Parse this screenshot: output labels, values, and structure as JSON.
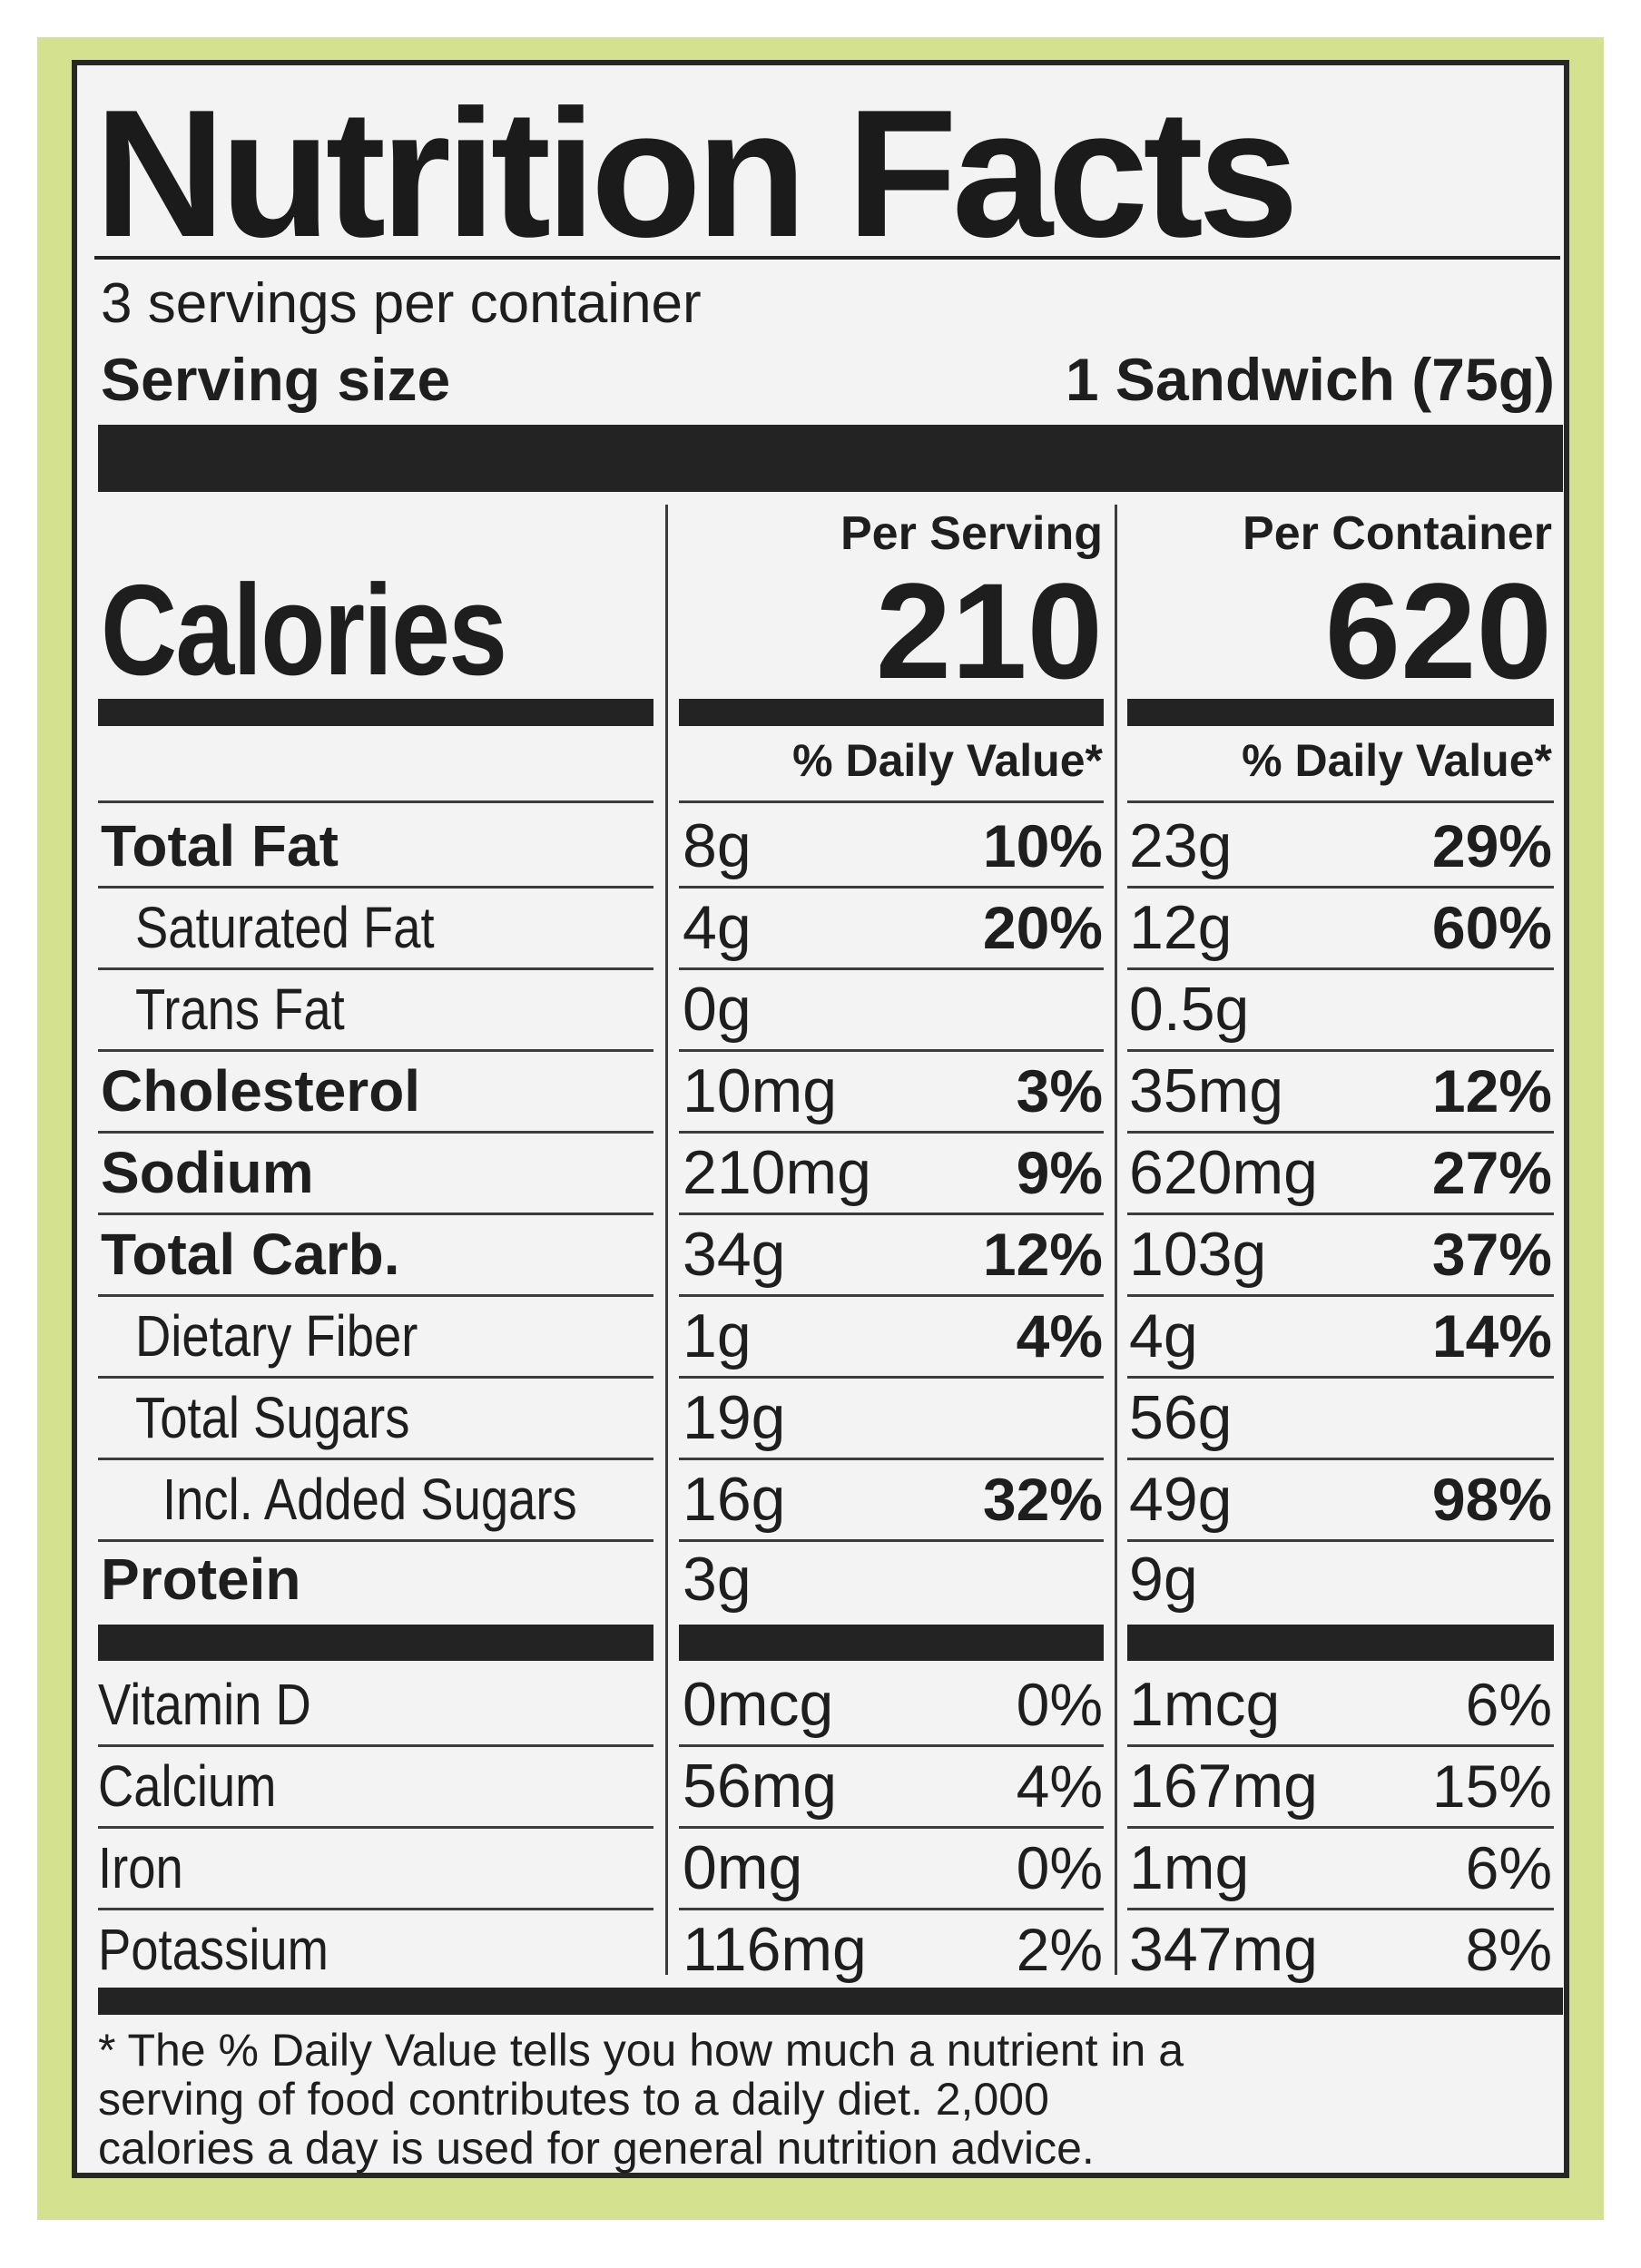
{
  "title": "Nutrition Facts",
  "servings_per_container": "3 servings per container",
  "serving_size_label": "Serving size",
  "serving_size_value": "1 Sandwich (75g)",
  "columns": {
    "per_serving": "Per Serving",
    "per_container": "Per Container"
  },
  "calories_label": "Calories",
  "calories_per_serving": "210",
  "calories_per_container": "620",
  "dv_header": "% Daily Value*",
  "nutrients": [
    {
      "name": "Total Fat",
      "s_amt": "8g",
      "s_pct": "10%",
      "c_amt": "23g",
      "c_pct": "29%"
    },
    {
      "name": "Saturated Fat",
      "s_amt": "4g",
      "s_pct": "20%",
      "c_amt": "12g",
      "c_pct": "60%"
    },
    {
      "name": "Trans Fat",
      "s_amt": "0g",
      "s_pct": "",
      "c_amt": "0.5g",
      "c_pct": ""
    },
    {
      "name": "Cholesterol",
      "s_amt": "10mg",
      "s_pct": "3%",
      "c_amt": "35mg",
      "c_pct": "12%"
    },
    {
      "name": "Sodium",
      "s_amt": "210mg",
      "s_pct": "9%",
      "c_amt": "620mg",
      "c_pct": "27%"
    },
    {
      "name": "Total Carb.",
      "s_amt": "34g",
      "s_pct": "12%",
      "c_amt": "103g",
      "c_pct": "37%"
    },
    {
      "name": "Dietary Fiber",
      "s_amt": "1g",
      "s_pct": "4%",
      "c_amt": "4g",
      "c_pct": "14%"
    },
    {
      "name": "Total Sugars",
      "s_amt": "19g",
      "s_pct": "",
      "c_amt": "56g",
      "c_pct": ""
    },
    {
      "name": "Incl. Added Sugars",
      "s_amt": "16g",
      "s_pct": "32%",
      "c_amt": "49g",
      "c_pct": "98%"
    },
    {
      "name": "Protein",
      "s_amt": "3g",
      "s_pct": "",
      "c_amt": "9g",
      "c_pct": ""
    }
  ],
  "vitamins": [
    {
      "name": "Vitamin D",
      "s_amt": "0mcg",
      "s_pct": "0%",
      "c_amt": "1mcg",
      "c_pct": "6%"
    },
    {
      "name": "Calcium",
      "s_amt": "56mg",
      "s_pct": "4%",
      "c_amt": "167mg",
      "c_pct": "15%"
    },
    {
      "name": "Iron",
      "s_amt": "0mg",
      "s_pct": "0%",
      "c_amt": "1mg",
      "c_pct": "6%"
    },
    {
      "name": "Potassium",
      "s_amt": "116mg",
      "s_pct": "2%",
      "c_amt": "347mg",
      "c_pct": "8%"
    }
  ],
  "footnote_lines": [
    "* The % Daily Value tells you how much a nutrient in a",
    "serving of food contributes to a daily diet. 2,000",
    "calories a day is used for general nutrition advice."
  ],
  "colors": {
    "frame": "#d4e18f",
    "label_bg": "#f3f3f3",
    "ink": "#1e1e1e"
  }
}
